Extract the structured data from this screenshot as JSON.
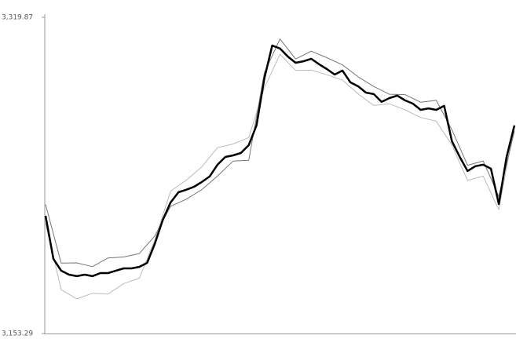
{
  "chart_data": {
    "type": "line",
    "ylim": [
      3153.29,
      3319.87
    ],
    "yticks": [
      {
        "value": 3319.87,
        "label": "3,319.87"
      },
      {
        "value": 3153.29,
        "label": "3,153.29"
      }
    ],
    "series": [
      {
        "color": "#bbbbbb",
        "width": 1,
        "values": [
          3211.3,
          3176.4,
          3171.5,
          3174.5,
          3174.1,
          3179.6,
          3182.4,
          3202.8,
          3228.3,
          3234.0,
          3241.1,
          3251.2,
          3253.1,
          3256.5,
          3282.7,
          3300.4,
          3291.9,
          3292.0,
          3289.6,
          3286.8,
          3279.5,
          3273.4,
          3274.3,
          3271.1,
          3267.1,
          3265.1,
          3252.6,
          3233.9,
          3236.2,
          3218.5,
          3262.9
        ]
      },
      {
        "color": "#777777",
        "width": 1,
        "values": [
          3221.3,
          3190.4,
          3190.5,
          3188.5,
          3193.1,
          3193.6,
          3195.4,
          3204.8,
          3220.3,
          3224.0,
          3229.1,
          3236.2,
          3244.1,
          3244.5,
          3290.7,
          3308.4,
          3297.9,
          3302.0,
          3298.6,
          3294.8,
          3288.5,
          3283.4,
          3279.3,
          3279.1,
          3275.1,
          3276.1,
          3260.6,
          3241.9,
          3244.2,
          3225.5,
          3259.9
        ]
      },
      {
        "color": "#000000",
        "width": 2.5,
        "values": [
          3215.3,
          3192.6,
          3186.4,
          3184.3,
          3183.5,
          3184.3,
          3183.5,
          3185.1,
          3185.1,
          3186.4,
          3187.6,
          3187.6,
          3188.4,
          3190.5,
          3200.8,
          3213.2,
          3222.3,
          3227.7,
          3229.0,
          3230.6,
          3233.1,
          3236.0,
          3242.2,
          3246.3,
          3247.1,
          3248.4,
          3252.5,
          3262.9,
          3287.7,
          3305.0,
          3303.4,
          3299.2,
          3295.9,
          3296.7,
          3298.0,
          3295.1,
          3292.6,
          3289.7,
          3291.8,
          3285.6,
          3283.5,
          3280.2,
          3279.4,
          3275.3,
          3277.3,
          3278.6,
          3276.1,
          3274.4,
          3271.1,
          3271.9,
          3271.1,
          3273.2,
          3254.6,
          3246.3,
          3238.9,
          3241.4,
          3242.2,
          3240.1,
          3221.5,
          3246.3,
          3262.9
        ]
      }
    ]
  }
}
